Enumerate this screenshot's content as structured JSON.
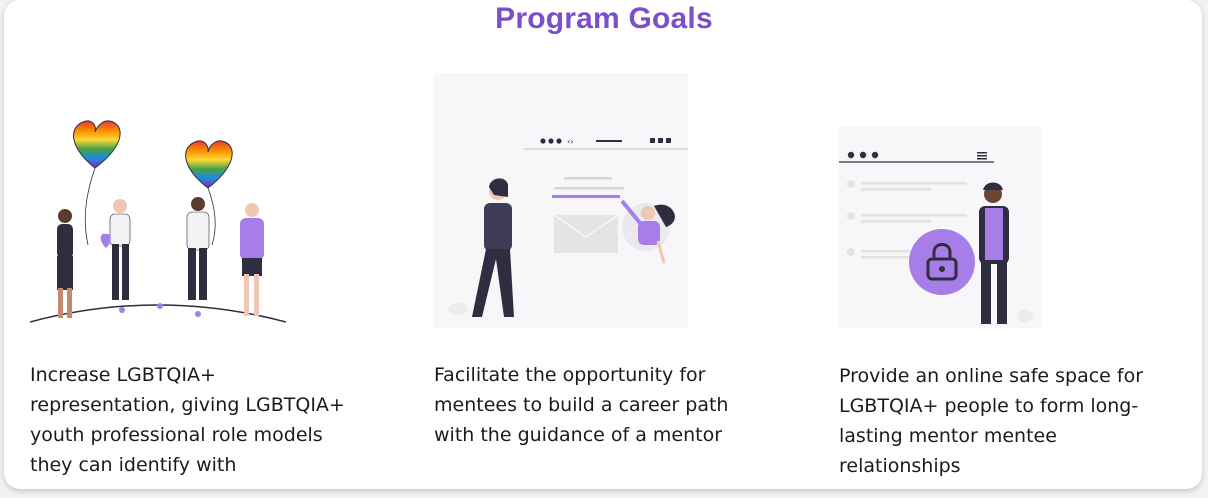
{
  "section": {
    "title": "Program Goals"
  },
  "goals": [
    {
      "illustration": "rainbow-heart-balloons-people-icon",
      "text": "Increase LGBTQIA+ representation, giving LGBTQIA+ youth professional role models they can identify with"
    },
    {
      "illustration": "mentor-guidance-web-page-icon",
      "text": "Facilitate the opportunity for mentees to build a career path with the guidance of a mentor"
    },
    {
      "illustration": "safe-space-lock-browser-icon",
      "text": "Provide an online safe space for LGBTQIA+ people to form long-lasting mentor mentee relationships"
    }
  ],
  "colors": {
    "accent": "#7b4fc9",
    "illustration_purple": "#a77ee8",
    "dark": "#2f2e41"
  }
}
